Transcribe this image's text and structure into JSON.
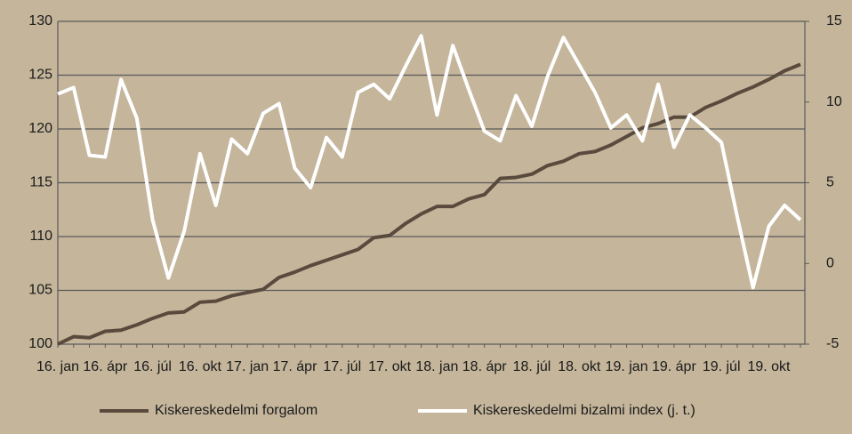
{
  "chart_data": {
    "type": "line",
    "categories": [
      "16. jan",
      null,
      null,
      "16. ápr",
      null,
      null,
      "16. júl",
      null,
      null,
      "16. okt",
      null,
      null,
      "17. jan",
      null,
      null,
      "17. ápr",
      null,
      null,
      "17. júl",
      null,
      null,
      "17. okt",
      null,
      null,
      "18. jan",
      null,
      null,
      "18. ápr",
      null,
      null,
      "18. júl",
      null,
      null,
      "18. okt",
      null,
      null,
      "19. jan",
      null,
      null,
      "19. ápr",
      null,
      null,
      "19. júl",
      null,
      null,
      "19. okt",
      null,
      null
    ],
    "series": [
      {
        "name": "Kiskereskedelmi forgalom",
        "color": "#5a4a3d",
        "axis": "y",
        "values": [
          100,
          100.7,
          100.6,
          101.2,
          101.3,
          101.8,
          102.4,
          102.9,
          103.0,
          103.9,
          104.0,
          104.5,
          104.8,
          105.1,
          106.2,
          106.7,
          107.3,
          107.8,
          108.3,
          108.8,
          109.9,
          110.1,
          111.2,
          112.1,
          112.8,
          112.8,
          113.5,
          113.9,
          115.4,
          115.5,
          115.8,
          116.6,
          117.0,
          117.7,
          117.9,
          118.5,
          119.3,
          120.1,
          120.5,
          121.1,
          121.1,
          122.0,
          122.6,
          123.3,
          123.9,
          124.6,
          125.4,
          126.0
        ]
      },
      {
        "name": "Kiskereskedelmi bizalmi index (j. t.)",
        "color": "#ffffff",
        "axis": "y2",
        "values": [
          10.5,
          10.9,
          6.7,
          6.6,
          11.4,
          9.0,
          2.7,
          -0.9,
          2.0,
          6.8,
          3.6,
          7.7,
          6.8,
          9.3,
          9.9,
          5.9,
          4.7,
          7.8,
          6.6,
          10.6,
          11.1,
          10.2,
          12.2,
          14.1,
          9.2,
          13.5,
          10.8,
          8.2,
          7.6,
          10.4,
          8.5,
          11.6,
          14.0,
          12.3,
          10.6,
          8.4,
          9.2,
          7.6,
          11.1,
          7.2,
          9.2,
          8.4,
          7.5,
          2.9,
          -1.5,
          2.3,
          3.6,
          2.7
        ]
      }
    ],
    "ylim": [
      100,
      130
    ],
    "yticks": [
      100,
      105,
      110,
      115,
      120,
      125,
      130
    ],
    "y2lim": [
      -5,
      15
    ],
    "y2ticks": [
      -5,
      0,
      5,
      10,
      15
    ],
    "grid": true,
    "legend": "bottom"
  }
}
